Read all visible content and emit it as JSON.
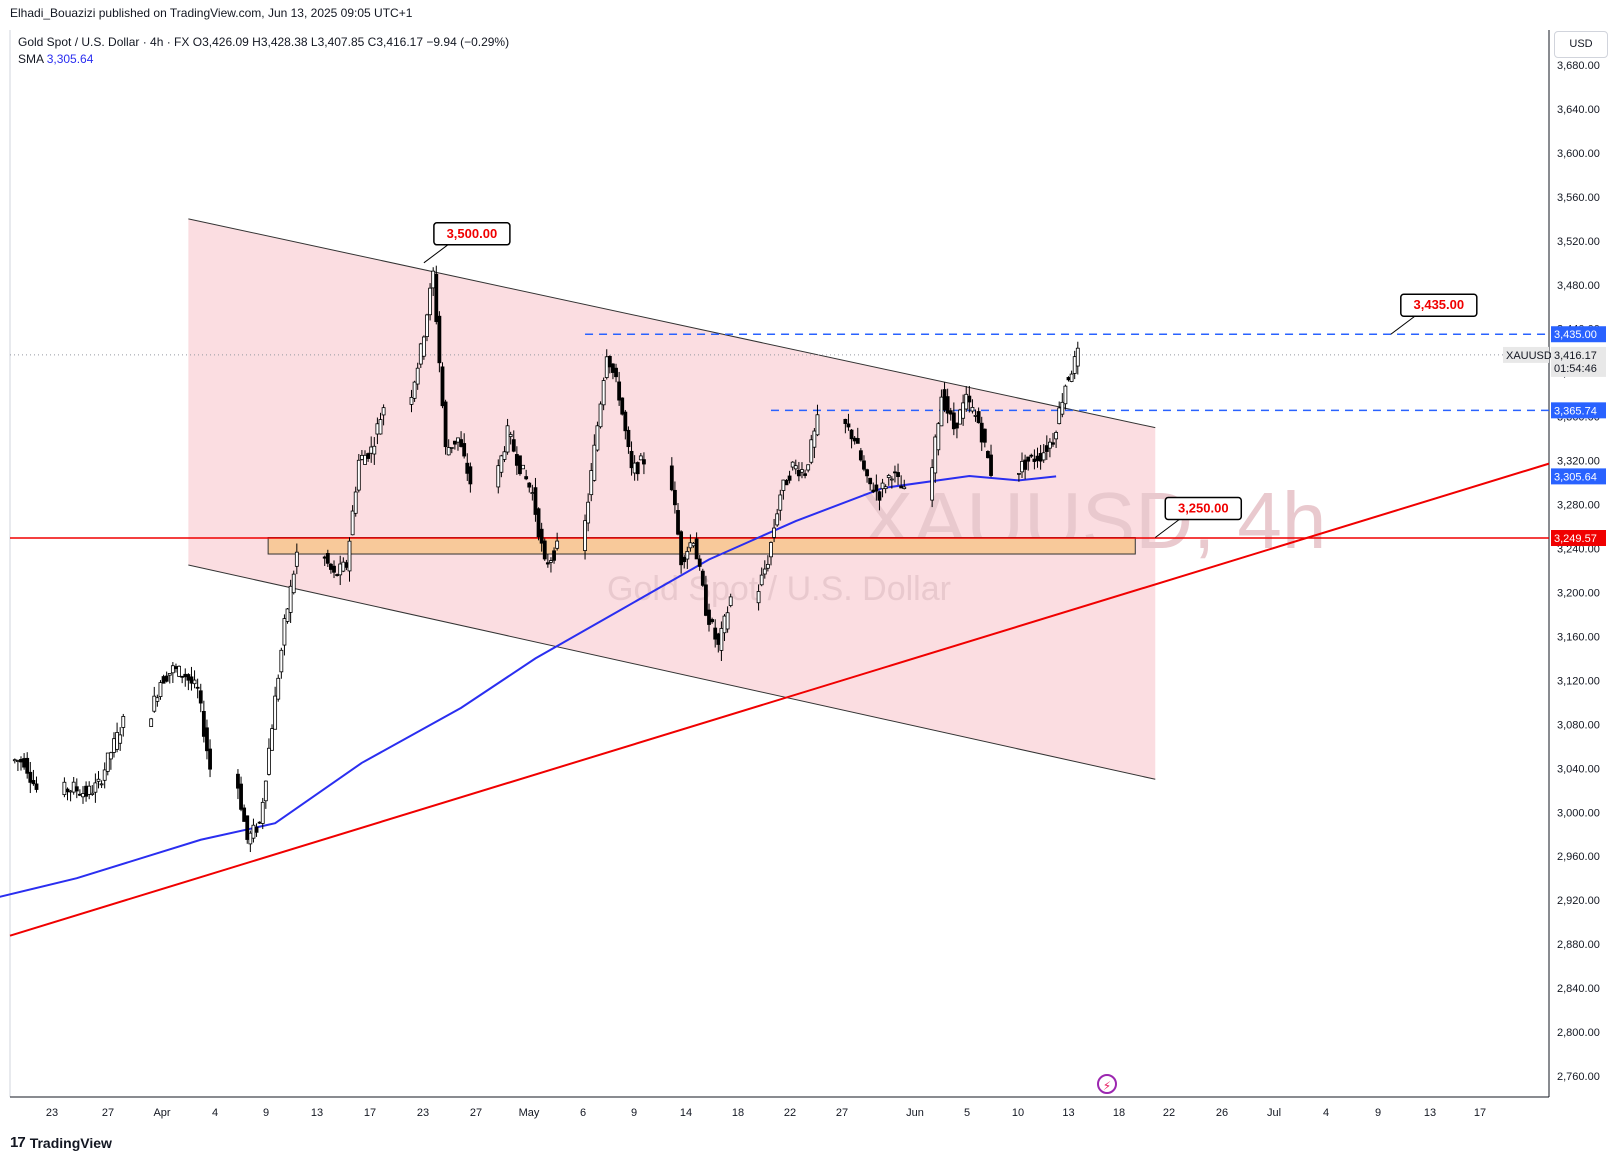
{
  "header": {
    "publish_line": "Elhadi_Bouazizi published on TradingView.com, Jun 13, 2025 09:05 UTC+1",
    "symbol_desc": "Gold Spot / U.S. Dollar · 4h · FX",
    "open_label": "O",
    "open": "3,426.09",
    "high_label": "H",
    "high": "3,428.38",
    "low_label": "L",
    "low": "3,407.85",
    "close_label": "C",
    "close": "3,416.17",
    "change": "−9.94 (−0.29%)",
    "sma_label": "SMA",
    "sma_value": "3,305.64"
  },
  "currency": "USD",
  "brand": "TradingView",
  "watermark": {
    "symbol": "XAUUSD, 4h",
    "desc": "Gold Spot / U.S. Dollar"
  },
  "colors": {
    "up_candle": "#ffffff",
    "down_candle": "#000000",
    "wick": "#000000",
    "channel_fill": "#fbdde1",
    "support_line": "#f00000",
    "sma": "#2a2ef0",
    "dashed_level": "#2962ff",
    "zone_fill": "#f8c99a",
    "price_tag_bg": "#e8e8e8"
  },
  "price_scale": {
    "ticks": [
      "3,680.00",
      "3,640.00",
      "3,600.00",
      "3,560.00",
      "3,520.00",
      "3,480.00",
      "3,440.00",
      "3,400.00",
      "3,360.00",
      "3,320.00",
      "3,280.00",
      "3,240.00",
      "3,200.00",
      "3,160.00",
      "3,120.00",
      "3,080.00",
      "3,040.00",
      "3,000.00",
      "2,960.00",
      "2,920.00",
      "2,880.00",
      "2,840.00",
      "2,800.00",
      "2,760.00"
    ],
    "tags": [
      {
        "label": "3,435.00",
        "price": 3435.0,
        "style": "blue"
      },
      {
        "label": "XAUUSD",
        "price": 3416.17,
        "style": "symbol",
        "value": "3,416.17",
        "countdown": "01:54:46"
      },
      {
        "label": "3,365.74",
        "price": 3365.74,
        "style": "blue"
      },
      {
        "label": "3,305.64",
        "price": 3305.64,
        "style": "blue"
      },
      {
        "label": "3,249.57",
        "price": 3249.57,
        "style": "red"
      }
    ]
  },
  "time_axis": [
    "23",
    "27",
    "Apr",
    "4",
    "9",
    "13",
    "17",
    "23",
    "27",
    "May",
    "6",
    "9",
    "14",
    "18",
    "22",
    "27",
    "Jun",
    "5",
    "10",
    "13",
    "18",
    "22",
    "26",
    "Jul",
    "4",
    "9",
    "13",
    "17"
  ],
  "chart_data": {
    "type": "candlestick",
    "symbol": "XAUUSD",
    "timeframe": "4h",
    "ylim": [
      2740,
      3700
    ],
    "x_axis_labels": [
      "23",
      "27",
      "Apr",
      "4",
      "9",
      "13",
      "17",
      "23",
      "27",
      "May",
      "6",
      "9",
      "14",
      "18",
      "22",
      "27",
      "Jun",
      "5",
      "10",
      "13",
      "18",
      "22",
      "26",
      "Jul",
      "4",
      "9",
      "13",
      "17"
    ],
    "close_path": [
      {
        "date": "Mar 20",
        "close": 3047
      },
      {
        "date": "Mar 21",
        "close": 3020
      },
      {
        "date": "Mar 24",
        "close": 3022
      },
      {
        "date": "Mar 25",
        "close": 3017
      },
      {
        "date": "Mar 26",
        "close": 3025
      },
      {
        "date": "Mar 27",
        "close": 3055
      },
      {
        "date": "Mar 28",
        "close": 3082
      },
      {
        "date": "Mar 31",
        "close": 3120
      },
      {
        "date": "Apr 1",
        "close": 3130
      },
      {
        "date": "Apr 2",
        "close": 3125
      },
      {
        "date": "Apr 3",
        "close": 3110
      },
      {
        "date": "Apr 4",
        "close": 3040
      },
      {
        "date": "Apr 7",
        "close": 2975
      },
      {
        "date": "Apr 8",
        "close": 2990
      },
      {
        "date": "Apr 9",
        "close": 3080
      },
      {
        "date": "Apr 10",
        "close": 3170
      },
      {
        "date": "Apr 11",
        "close": 3235
      },
      {
        "date": "Apr 14",
        "close": 3215
      },
      {
        "date": "Apr 15",
        "close": 3225
      },
      {
        "date": "Apr 16",
        "close": 3320
      },
      {
        "date": "Apr 17",
        "close": 3330
      },
      {
        "date": "Apr 18",
        "close": 3370
      },
      {
        "date": "Apr 21",
        "close": 3420
      },
      {
        "date": "Apr 22",
        "close": 3490
      },
      {
        "date": "Apr 23",
        "close": 3330
      },
      {
        "date": "Apr 24",
        "close": 3340
      },
      {
        "date": "Apr 25",
        "close": 3300
      },
      {
        "date": "Apr 28",
        "close": 3345
      },
      {
        "date": "Apr 29",
        "close": 3315
      },
      {
        "date": "Apr 30",
        "close": 3290
      },
      {
        "date": "May 1",
        "close": 3225
      },
      {
        "date": "May 2",
        "close": 3240
      },
      {
        "date": "May 5",
        "close": 3330
      },
      {
        "date": "May 6",
        "close": 3420
      },
      {
        "date": "May 7",
        "close": 3380
      },
      {
        "date": "May 8",
        "close": 3310
      },
      {
        "date": "May 9",
        "close": 3320
      },
      {
        "date": "May 12",
        "close": 3230
      },
      {
        "date": "May 13",
        "close": 3250
      },
      {
        "date": "May 14",
        "close": 3185
      },
      {
        "date": "May 15",
        "close": 3150
      },
      {
        "date": "May 16",
        "close": 3195
      },
      {
        "date": "May 19",
        "close": 3230
      },
      {
        "date": "May 20",
        "close": 3290
      },
      {
        "date": "May 21",
        "close": 3315
      },
      {
        "date": "May 22",
        "close": 3310
      },
      {
        "date": "May 23",
        "close": 3355
      },
      {
        "date": "May 26",
        "close": 3340
      },
      {
        "date": "May 27",
        "close": 3300
      },
      {
        "date": "May 28",
        "close": 3290
      },
      {
        "date": "May 29",
        "close": 3310
      },
      {
        "date": "May 30",
        "close": 3290
      },
      {
        "date": "Jun 2",
        "close": 3380
      },
      {
        "date": "Jun 3",
        "close": 3350
      },
      {
        "date": "Jun 4",
        "close": 3375
      },
      {
        "date": "Jun 5",
        "close": 3355
      },
      {
        "date": "Jun 6",
        "close": 3310
      },
      {
        "date": "Jun 9",
        "close": 3320
      },
      {
        "date": "Jun 10",
        "close": 3325
      },
      {
        "date": "Jun 11",
        "close": 3340
      },
      {
        "date": "Jun 12",
        "close": 3390
      },
      {
        "date": "Jun 13",
        "close": 3416.17
      }
    ],
    "annotations": {
      "price_labels": [
        {
          "text": "3,500.00",
          "date": "Apr 22",
          "price": 3500
        },
        {
          "text": "3,435.00",
          "date": "Jul 9",
          "price": 3435
        },
        {
          "text": "3,250.00",
          "date": "Jun 20",
          "price": 3250
        }
      ],
      "horizontal_lines": [
        {
          "price": 3249.57,
          "style": "solid",
          "color": "red"
        },
        {
          "price": 3435.0,
          "style": "dashed",
          "color": "blue",
          "from_date": "May 5"
        },
        {
          "price": 3365.74,
          "style": "dashed",
          "color": "blue",
          "from_date": "May 20"
        },
        {
          "price": 3416.17,
          "style": "dotted",
          "color": "gray"
        }
      ],
      "descending_channel": {
        "upper": [
          {
            "date": "Apr 3",
            "price": 3540
          },
          {
            "date": "Jun 20",
            "price": 3350
          }
        ],
        "lower": [
          {
            "date": "Apr 3",
            "price": 3225
          },
          {
            "date": "Jun 20",
            "price": 3030
          }
        ]
      },
      "support_zone": {
        "from_date": "Apr 10",
        "to_date": "Jun 20",
        "low": 3235,
        "high": 3250
      },
      "rising_trendline": [
        {
          "date": "Mar 14",
          "price": 2895
        },
        {
          "date": "Jul 20",
          "price": 3330
        }
      ]
    },
    "sma": {
      "label": "SMA",
      "last": 3305.64,
      "path": [
        {
          "date": "Mar 14",
          "value": 2910
        },
        {
          "date": "Mar 25",
          "value": 2940
        },
        {
          "date": "Apr 4",
          "value": 2975
        },
        {
          "date": "Apr 10",
          "value": 2990
        },
        {
          "date": "Apr 17",
          "value": 3045
        },
        {
          "date": "Apr 25",
          "value": 3095
        },
        {
          "date": "May 1",
          "value": 3140
        },
        {
          "date": "May 8",
          "value": 3185
        },
        {
          "date": "May 15",
          "value": 3230
        },
        {
          "date": "May 22",
          "value": 3265
        },
        {
          "date": "May 29",
          "value": 3295
        },
        {
          "date": "Jun 5",
          "value": 3306
        },
        {
          "date": "Jun 9",
          "value": 3302
        },
        {
          "date": "Jun 12",
          "value": 3305.64
        }
      ]
    }
  }
}
